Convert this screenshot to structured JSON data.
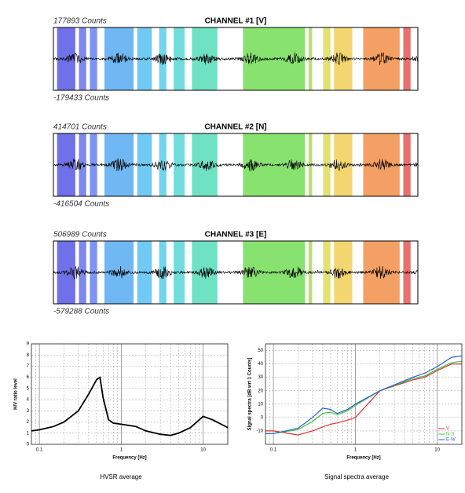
{
  "channels": [
    {
      "max_label": "177893 Counts",
      "title": "CHANNEL #1 [V]",
      "min_label": "-179433 Counts"
    },
    {
      "max_label": "414701 Counts",
      "title": "CHANNEL #2 [N]",
      "min_label": "-416504 Counts"
    },
    {
      "max_label": "506989 Counts",
      "title": "CHANNEL #3 [E]",
      "min_label": "-579288 Counts"
    }
  ],
  "chart_data": [
    {
      "type": "line",
      "caption": "HVSR average",
      "x_label": "Frequency [Hz]",
      "y_label": "H/V ratio level",
      "xscale": "log",
      "grid": true,
      "xlim": [
        0.08,
        20
      ],
      "xticks": [
        0.1,
        1,
        10
      ],
      "ylim": [
        0,
        9
      ],
      "yticks": [
        0,
        1,
        2,
        3,
        4,
        5,
        6,
        7,
        8,
        9
      ],
      "x": [
        0.08,
        0.1,
        0.15,
        0.2,
        0.3,
        0.4,
        0.5,
        0.55,
        0.6,
        0.7,
        0.8,
        1,
        1.5,
        2,
        3,
        4,
        5,
        7,
        10,
        13,
        20
      ],
      "series": [
        {
          "color": "#000000",
          "values": [
            1.2,
            1.3,
            1.6,
            2,
            3,
            4.5,
            5.8,
            6,
            4.2,
            2.2,
            1.9,
            1.8,
            1.6,
            1.2,
            0.9,
            0.8,
            1,
            1.5,
            2.5,
            2.2,
            1.5
          ]
        }
      ]
    },
    {
      "type": "line",
      "caption": "Signal spectra average",
      "x_label": "Frequency [Hz]",
      "y_label": "Signal spectra [dB wrt 1 Counts]",
      "xscale": "log",
      "grid": true,
      "xlim": [
        0.08,
        20
      ],
      "xticks": [
        0.1,
        1,
        10
      ],
      "ylim": [
        -20,
        55
      ],
      "yticks": [
        -10,
        0,
        10,
        20,
        30,
        40,
        50
      ],
      "x": [
        0.08,
        0.1,
        0.2,
        0.3,
        0.4,
        0.5,
        0.6,
        0.8,
        1,
        2,
        5,
        7,
        10,
        15,
        20
      ],
      "legend": "lower right",
      "series": [
        {
          "name": "V",
          "color": "#e03030",
          "values": [
            -10,
            -10,
            -13,
            -10,
            -7,
            -5,
            -4,
            -2,
            0,
            20,
            28,
            30,
            35,
            40,
            40
          ]
        },
        {
          "name": "N-S",
          "color": "#40c040",
          "values": [
            -12,
            -12,
            -9,
            -3,
            3,
            4,
            2,
            5,
            9,
            20,
            29,
            31,
            36,
            41,
            42
          ]
        },
        {
          "name": "E-W",
          "color": "#3060d0",
          "values": [
            -12,
            -12,
            -8,
            0,
            7,
            6,
            3,
            6,
            10,
            20,
            30,
            33,
            38,
            45,
            46
          ]
        }
      ]
    }
  ]
}
